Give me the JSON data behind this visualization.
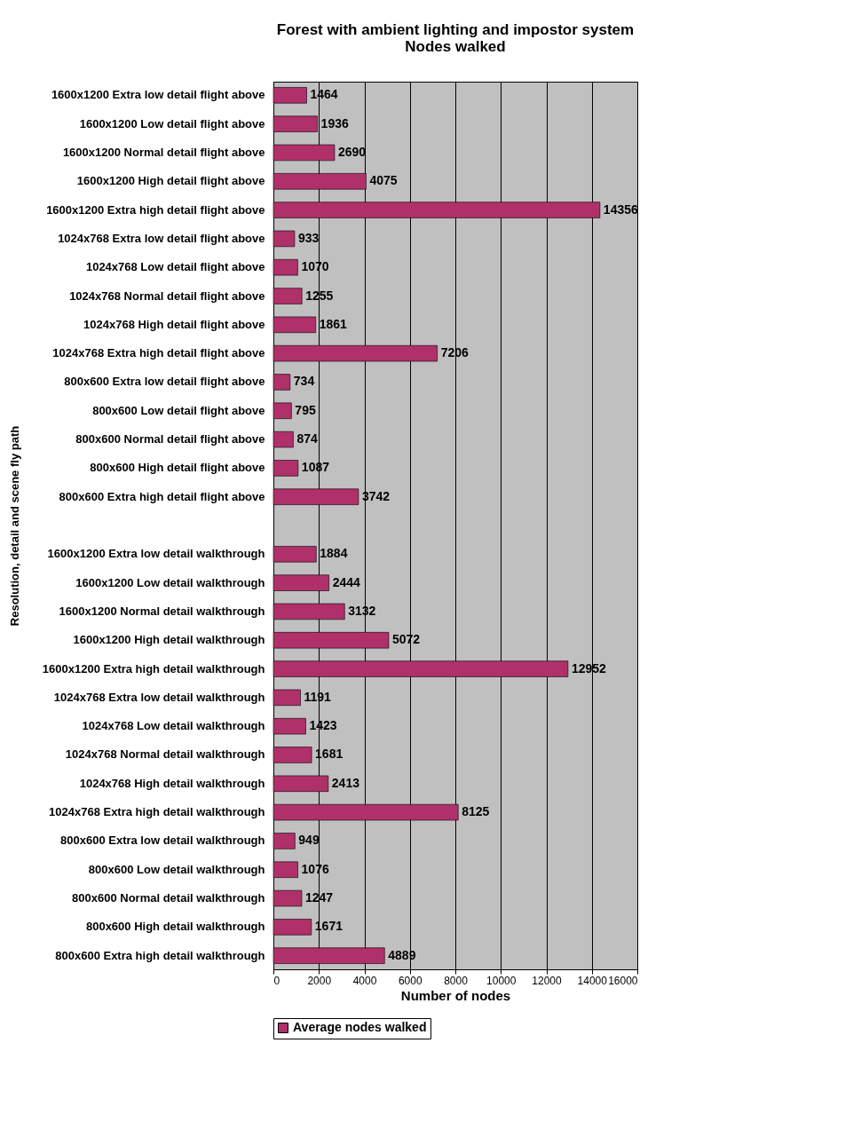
{
  "chart_data": {
    "type": "bar",
    "orientation": "horizontal",
    "title": "Forest with ambient lighting and impostor system\nNodes walked",
    "xlabel": "Number of nodes",
    "ylabel": "Resolution, detail and scene fly path",
    "categories": [
      "1600x1200 Extra low detail flight above",
      "1600x1200 Low detail flight above",
      "1600x1200 Normal detail flight above",
      "1600x1200 High detail flight above",
      "1600x1200 Extra high detail flight above",
      "1024x768 Extra low detail flight above",
      "1024x768 Low detail flight above",
      "1024x768 Normal detail flight above",
      "1024x768 High detail flight above",
      "1024x768 Extra high detail flight above",
      "800x600 Extra low detail flight above",
      "800x600 Low detail flight above",
      "800x600 Normal detail flight above",
      "800x600 High detail flight above",
      "800x600 Extra high detail flight above",
      null,
      "1600x1200 Extra low detail walkthrough",
      "1600x1200 Low detail walkthrough",
      "1600x1200 Normal detail walkthrough",
      "1600x1200 High detail walkthrough",
      "1600x1200 Extra high detail walkthrough",
      "1024x768 Extra low detail walkthrough",
      "1024x768 Low detail walkthrough",
      "1024x768 Normal detail walkthrough",
      "1024x768 High detail walkthrough",
      "1024x768 Extra high detail walkthrough",
      "800x600 Extra low detail walkthrough",
      "800x600 Low detail walkthrough",
      "800x600 Normal detail walkthrough",
      "800x600 High detail walkthrough",
      "800x600 Extra high detail walkthrough"
    ],
    "series": [
      {
        "name": "Average nodes walked",
        "color": "#b0306a",
        "values": [
          1464,
          1936,
          2690,
          4075,
          14356,
          933,
          1070,
          1255,
          1861,
          7206,
          734,
          795,
          874,
          1087,
          3742,
          null,
          1884,
          2444,
          3132,
          5072,
          12952,
          1191,
          1423,
          1681,
          2413,
          8125,
          949,
          1076,
          1247,
          1671,
          4889
        ]
      }
    ],
    "xlim": [
      0,
      16000
    ],
    "xticks": [
      0,
      2000,
      4000,
      6000,
      8000,
      10000,
      12000,
      14000,
      16000
    ],
    "grid": "x",
    "legend": "bottom",
    "data_labels": true
  }
}
